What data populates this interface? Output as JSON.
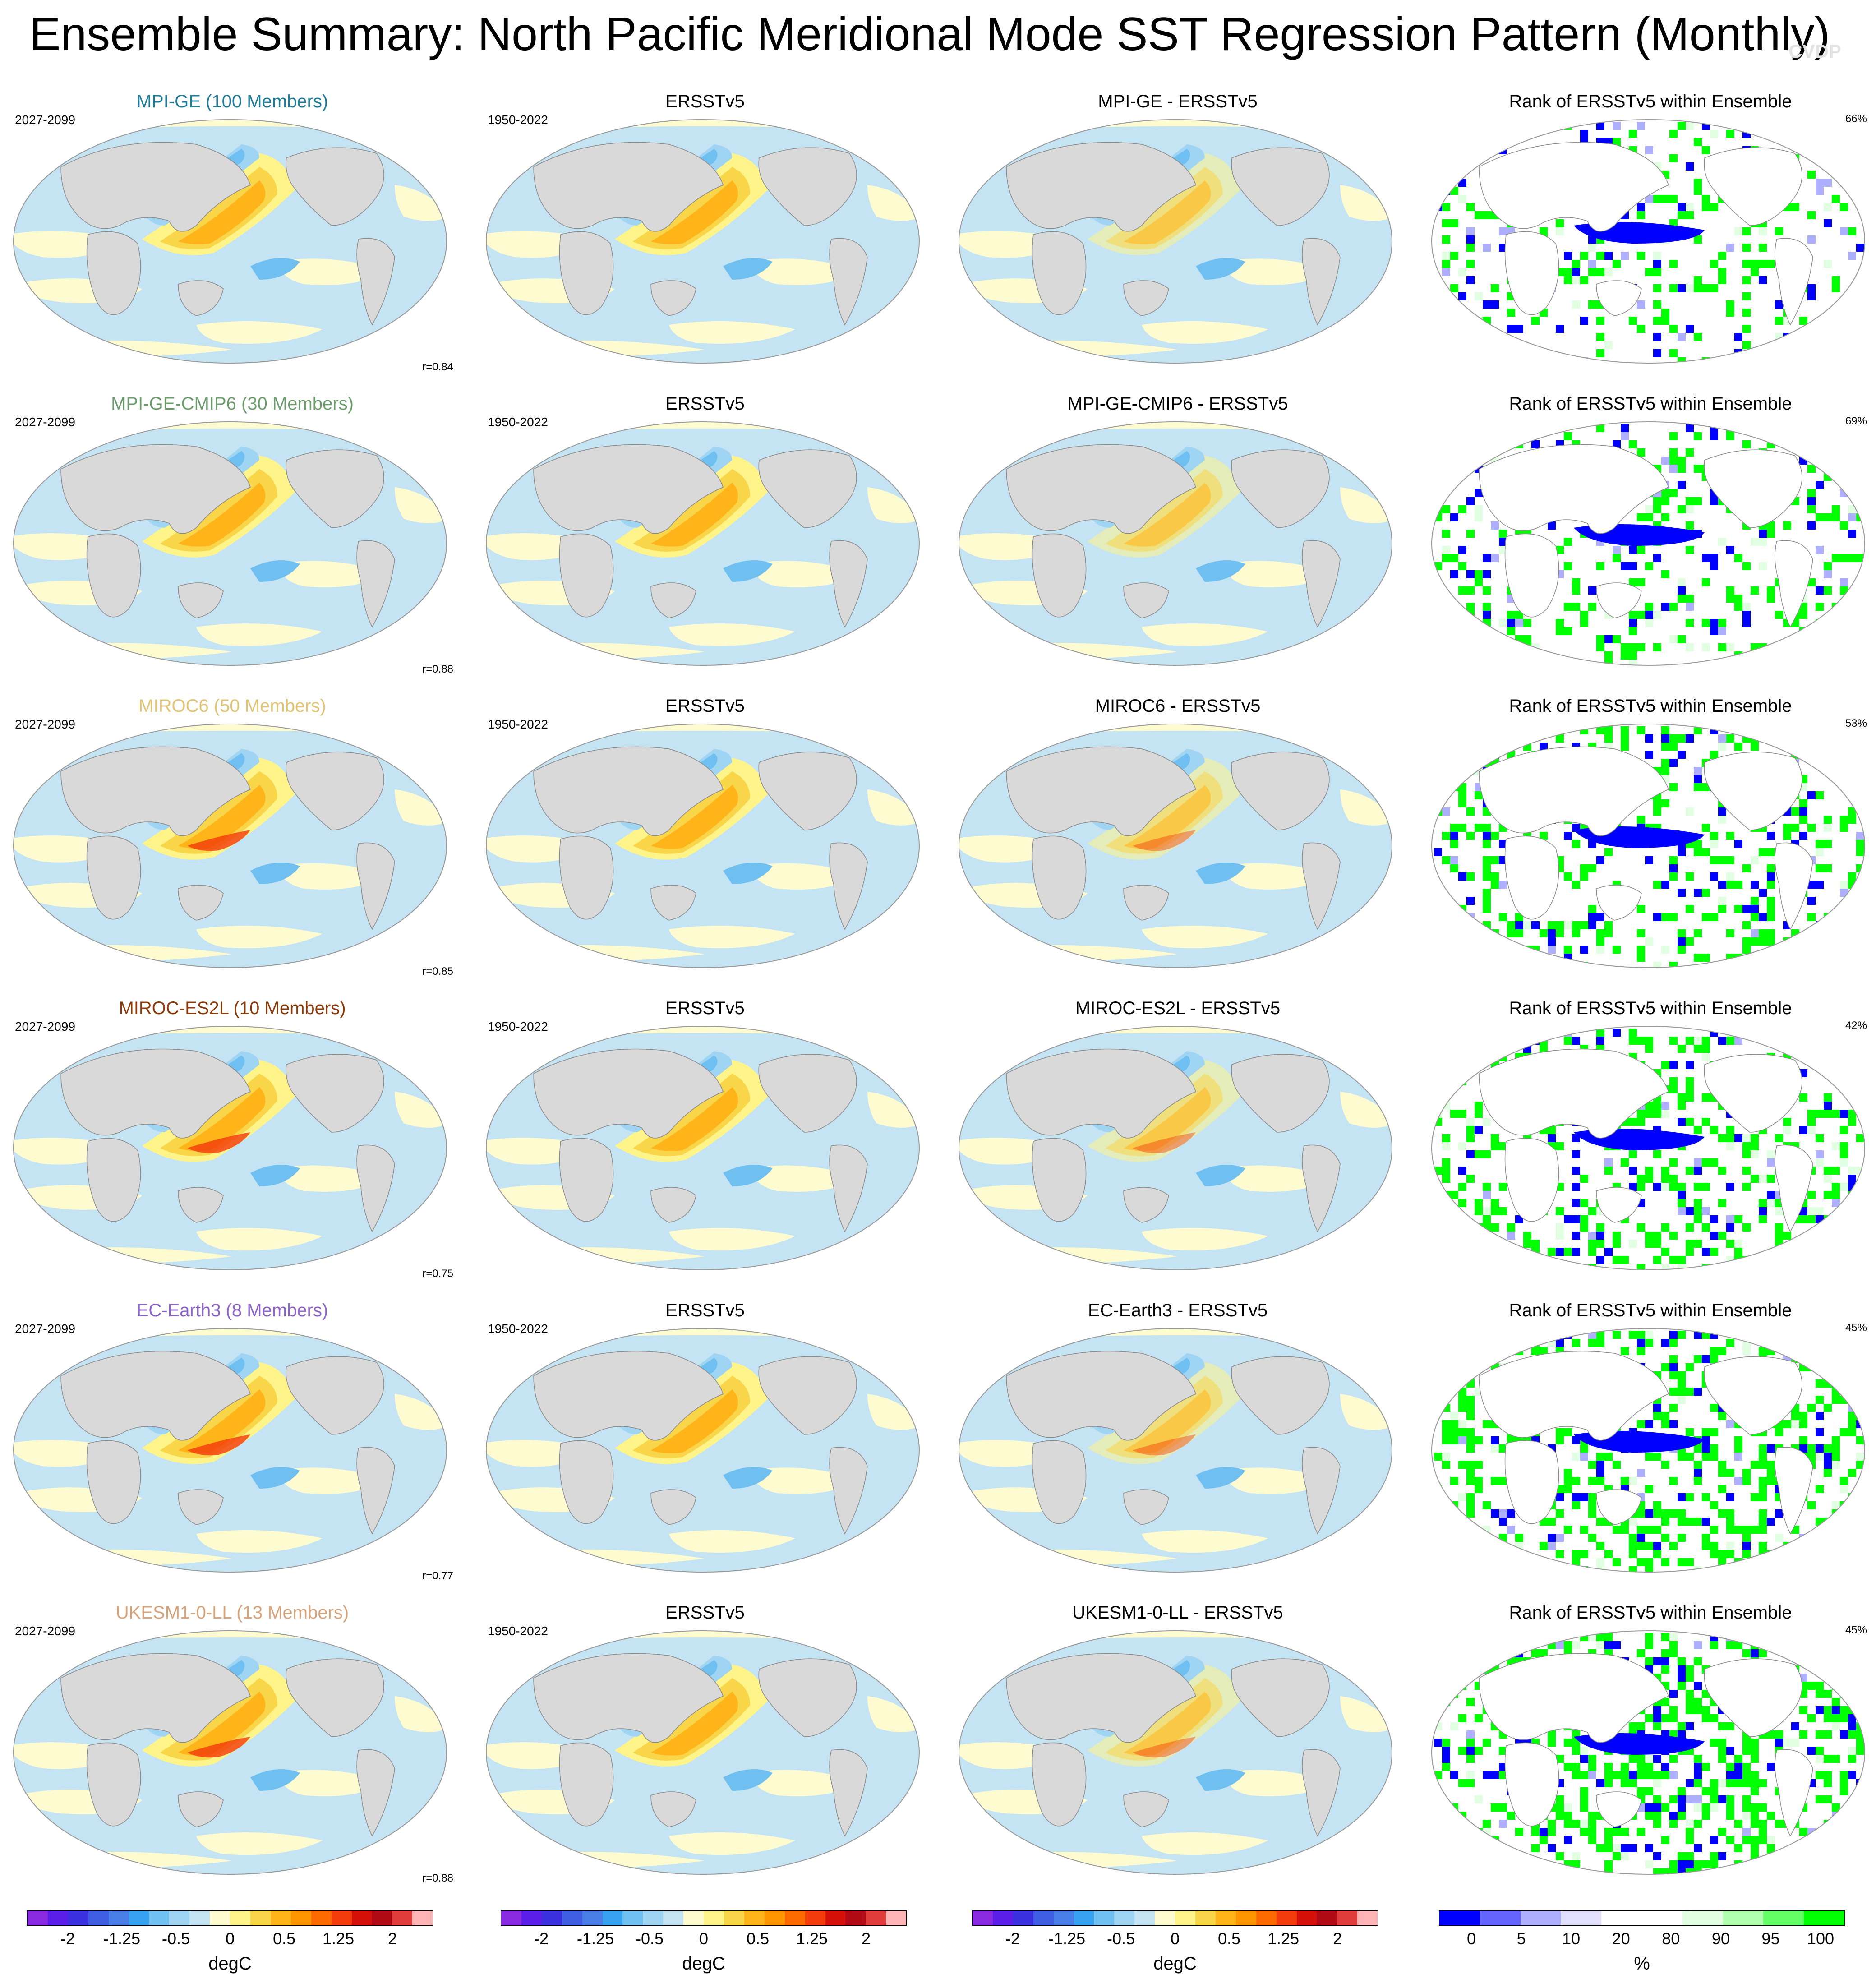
{
  "title": "Ensemble Summary: North Pacific Meridional Mode SST Regression Pattern (Monthly)",
  "logo_text": "CVDP",
  "rows": [
    {
      "model": "MPI-GE (100 Members)",
      "model_color": "#1e7b9a",
      "years_model": "2027-2099",
      "years_obs": "1950-2022",
      "obs": "ERSSTv5",
      "diff": "MPI-GE - ERSSTv5",
      "rank": "Rank of ERSSTv5 within Ensemble",
      "pct": "66%",
      "corr": "r=0.84"
    },
    {
      "model": "MPI-GE-CMIP6 (30 Members)",
      "model_color": "#6b9a6b",
      "years_model": "2027-2099",
      "years_obs": "1950-2022",
      "obs": "ERSSTv5",
      "diff": "MPI-GE-CMIP6 - ERSSTv5",
      "rank": "Rank of ERSSTv5 within Ensemble",
      "pct": "69%",
      "corr": "r=0.88"
    },
    {
      "model": "MIROC6 (50 Members)",
      "model_color": "#e0c374",
      "years_model": "2027-2099",
      "years_obs": "1950-2022",
      "obs": "ERSSTv5",
      "diff": "MIROC6 - ERSSTv5",
      "rank": "Rank of ERSSTv5 within Ensemble",
      "pct": "53%",
      "corr": "r=0.85"
    },
    {
      "model": "MIROC-ES2L (10 Members)",
      "model_color": "#8a3a0a",
      "years_model": "2027-2099",
      "years_obs": "1950-2022",
      "obs": "ERSSTv5",
      "diff": "MIROC-ES2L - ERSSTv5",
      "rank": "Rank of ERSSTv5 within Ensemble",
      "pct": "42%",
      "corr": "r=0.75"
    },
    {
      "model": "EC-Earth3 (8 Members)",
      "model_color": "#8c63c8",
      "years_model": "2027-2099",
      "years_obs": "1950-2022",
      "obs": "ERSSTv5",
      "diff": "EC-Earth3 - ERSSTv5",
      "rank": "Rank of ERSSTv5 within Ensemble",
      "pct": "45%",
      "corr": "r=0.77"
    },
    {
      "model": "UKESM1-0-LL (13 Members)",
      "model_color": "#d6a27a",
      "years_model": "2027-2099",
      "years_obs": "1950-2022",
      "obs": "ERSSTv5",
      "diff": "UKESM1-0-LL - ERSSTv5",
      "rank": "Rank of ERSSTv5 within Ensemble",
      "pct": "45%",
      "corr": "r=0.88"
    }
  ],
  "colorbars": {
    "sst": {
      "label": "degC",
      "ticks": [
        "-2",
        "-1.25",
        "-0.5",
        "0",
        "0.5",
        "1.25",
        "2"
      ],
      "colors": [
        "#8a2be2",
        "#5a1ee8",
        "#3a30e0",
        "#3f5ee2",
        "#4a7ee8",
        "#36a2f0",
        "#6fc0f0",
        "#9fd4f2",
        "#c4e4f4",
        "#fffbd0",
        "#fff48a",
        "#f9d54a",
        "#ffb51a",
        "#ff9500",
        "#ff6a00",
        "#f23a0a",
        "#d6100a",
        "#b20a16",
        "#e03c3c",
        "#fcb4b4"
      ]
    },
    "rank": {
      "label": "%",
      "ticks": [
        "0",
        "5",
        "10",
        "20",
        "80",
        "90",
        "95",
        "100"
      ],
      "colors": [
        "#0000ff",
        "#6464ff",
        "#afafff",
        "#e1e1ff",
        "#ffffff",
        "#ffffff",
        "#e1ffe1",
        "#afffaf",
        "#64ff64",
        "#00ff00"
      ]
    }
  }
}
